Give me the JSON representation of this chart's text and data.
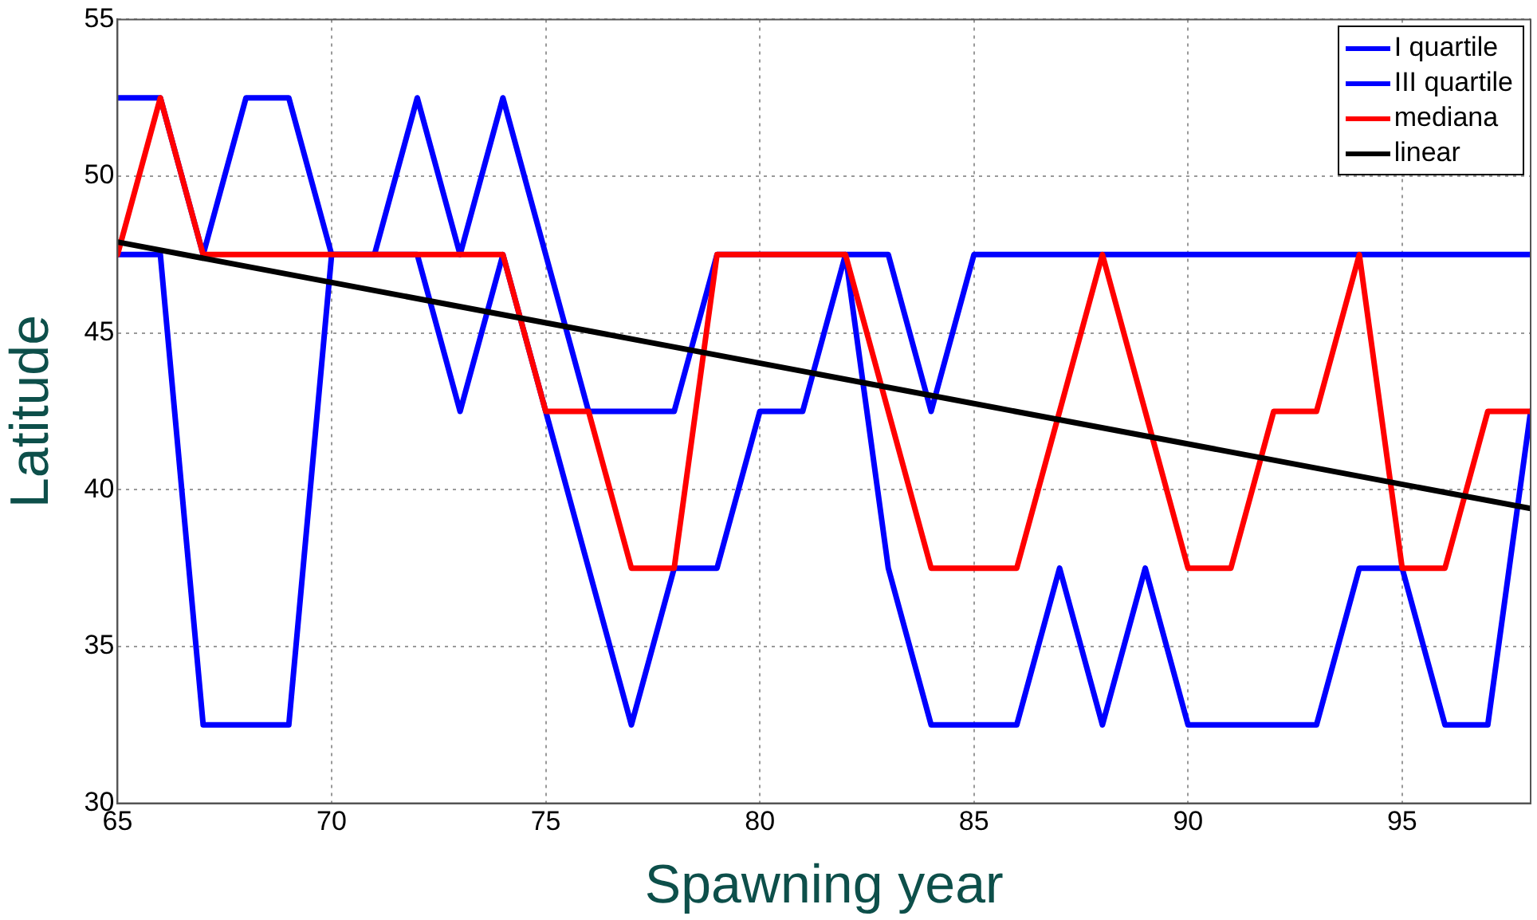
{
  "chart_data": {
    "type": "line",
    "xlabel": "Spawning year",
    "ylabel": "Latitude",
    "x": [
      65,
      66,
      67,
      68,
      69,
      70,
      71,
      72,
      73,
      74,
      75,
      76,
      77,
      78,
      79,
      80,
      81,
      82,
      83,
      84,
      85,
      86,
      87,
      88,
      89,
      90,
      91,
      92,
      93,
      94,
      95,
      96,
      97,
      98
    ],
    "series": [
      {
        "name": "I quartile",
        "color": "#0000ff",
        "values": [
          47.5,
          47.5,
          32.5,
          32.5,
          32.5,
          47.5,
          47.5,
          47.5,
          42.5,
          47.5,
          42.5,
          37.5,
          32.5,
          37.5,
          37.5,
          42.5,
          42.5,
          47.5,
          37.5,
          32.5,
          32.5,
          32.5,
          37.5,
          32.5,
          37.5,
          32.5,
          32.5,
          32.5,
          32.5,
          37.5,
          37.5,
          32.5,
          32.5,
          42.5
        ]
      },
      {
        "name": "III quartile",
        "color": "#0000ff",
        "values": [
          52.5,
          52.5,
          47.5,
          52.5,
          52.5,
          47.5,
          47.5,
          52.5,
          47.5,
          52.5,
          47.5,
          42.5,
          42.5,
          42.5,
          47.5,
          47.5,
          47.5,
          47.5,
          47.5,
          42.5,
          47.5,
          47.5,
          47.5,
          47.5,
          47.5,
          47.5,
          47.5,
          47.5,
          47.5,
          47.5,
          47.5,
          47.5,
          47.5,
          47.5
        ]
      },
      {
        "name": "mediana",
        "color": "#ff0000",
        "values": [
          47.5,
          52.5,
          47.5,
          47.5,
          47.5,
          47.5,
          47.5,
          47.5,
          47.5,
          47.5,
          42.5,
          42.5,
          37.5,
          37.5,
          47.5,
          47.5,
          47.5,
          47.5,
          42.5,
          37.5,
          37.5,
          37.5,
          42.5,
          47.5,
          42.5,
          37.5,
          37.5,
          42.5,
          42.5,
          47.5,
          37.5,
          37.5,
          42.5,
          42.5
        ]
      },
      {
        "name": "linear",
        "color": "#000000",
        "x": [
          65,
          98
        ],
        "values": [
          47.9,
          39.4
        ]
      }
    ],
    "xlim": [
      65,
      98
    ],
    "xticks": [
      65,
      70,
      75,
      80,
      85,
      90,
      95
    ],
    "ylim": [
      30,
      55
    ],
    "yticks": [
      30,
      35,
      40,
      45,
      50,
      55
    ],
    "grid": true,
    "legend": "top right",
    "marker": "none"
  }
}
